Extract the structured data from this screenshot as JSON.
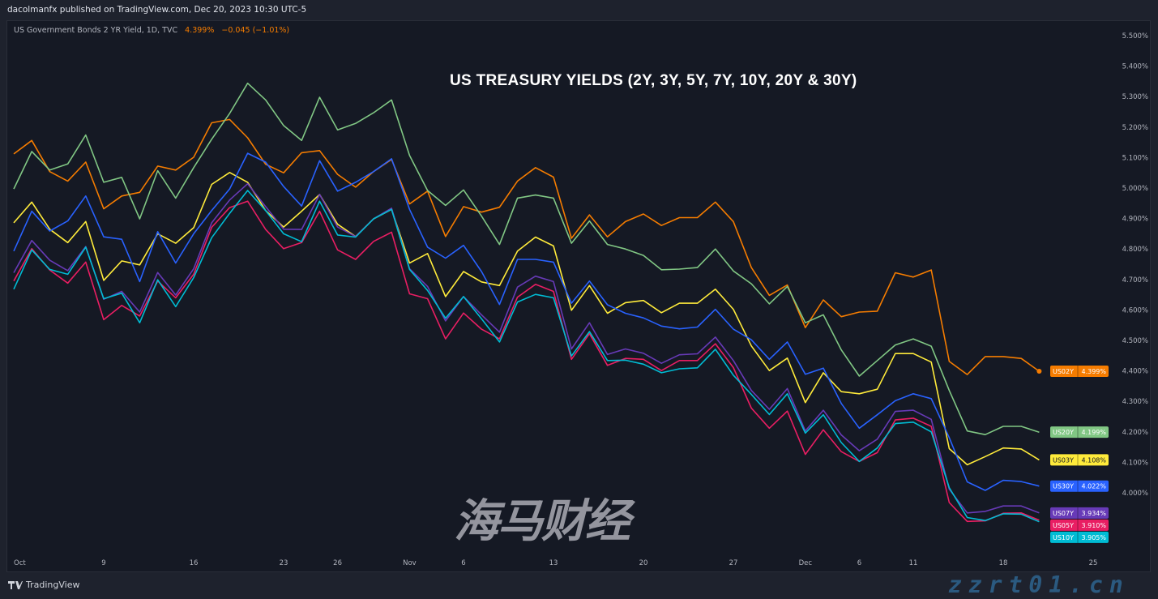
{
  "header": {
    "published": "dacolmanfx published on TradingView.com, Dec 20, 2023 10:30 UTC-5"
  },
  "legend": {
    "symbol": "US Government Bonds 2 YR Yield, 1D, TVC",
    "price": "4.399%",
    "change": "−0.045 (−1.01%)"
  },
  "footer": {
    "brand": "TradingView"
  },
  "watermark": {
    "cn": "海马财经",
    "site": "zzrt01.cn"
  },
  "chart_data": {
    "type": "line",
    "title": "US TREASURY YIELDS (2Y, 3Y, 5Y, 7Y, 10Y, 20Y & 30Y)",
    "ylim": [
      3.85,
      5.55
    ],
    "yticks": [
      "5.500%",
      "5.400%",
      "5.300%",
      "5.200%",
      "5.100%",
      "5.000%",
      "4.900%",
      "4.800%",
      "4.700%",
      "4.600%",
      "4.500%",
      "4.400%",
      "4.300%",
      "4.200%",
      "4.100%",
      "4.000%"
    ],
    "ytick_values": [
      5.5,
      5.4,
      5.3,
      5.2,
      5.1,
      5.0,
      4.9,
      4.8,
      4.7,
      4.6,
      4.5,
      4.4,
      4.3,
      4.2,
      4.1,
      4.0
    ],
    "xticks": [
      {
        "date": "2023-10-02",
        "label": "Oct"
      },
      {
        "date": "2023-10-09",
        "label": "9"
      },
      {
        "date": "2023-10-16",
        "label": "16"
      },
      {
        "date": "2023-10-23",
        "label": "23"
      },
      {
        "date": "2023-10-26",
        "label": "26"
      },
      {
        "date": "2023-11-01",
        "label": "Nov"
      },
      {
        "date": "2023-11-06",
        "label": "6"
      },
      {
        "date": "2023-11-13",
        "label": "13"
      },
      {
        "date": "2023-11-20",
        "label": "20"
      },
      {
        "date": "2023-11-27",
        "label": "27"
      },
      {
        "date": "2023-12-01",
        "label": "Dec"
      },
      {
        "date": "2023-12-06",
        "label": "6"
      },
      {
        "date": "2023-12-11",
        "label": "11"
      },
      {
        "date": "2023-12-18",
        "label": "18"
      },
      {
        "date": "2023-12-25",
        "label": "25"
      }
    ],
    "x": [
      "2023-10-02",
      "2023-10-03",
      "2023-10-04",
      "2023-10-05",
      "2023-10-06",
      "2023-10-09",
      "2023-10-10",
      "2023-10-11",
      "2023-10-12",
      "2023-10-13",
      "2023-10-16",
      "2023-10-17",
      "2023-10-18",
      "2023-10-19",
      "2023-10-20",
      "2023-10-23",
      "2023-10-24",
      "2023-10-25",
      "2023-10-26",
      "2023-10-27",
      "2023-10-30",
      "2023-10-31",
      "2023-11-01",
      "2023-11-02",
      "2023-11-03",
      "2023-11-06",
      "2023-11-07",
      "2023-11-08",
      "2023-11-09",
      "2023-11-10",
      "2023-11-13",
      "2023-11-14",
      "2023-11-15",
      "2023-11-16",
      "2023-11-17",
      "2023-11-20",
      "2023-11-21",
      "2023-11-22",
      "2023-11-23",
      "2023-11-24",
      "2023-11-27",
      "2023-11-28",
      "2023-11-29",
      "2023-11-30",
      "2023-12-01",
      "2023-12-04",
      "2023-12-05",
      "2023-12-06",
      "2023-12-07",
      "2023-12-08",
      "2023-12-11",
      "2023-12-12",
      "2023-12-13",
      "2023-12-14",
      "2023-12-15",
      "2023-12-18",
      "2023-12-19",
      "2023-12-20"
    ],
    "series": [
      {
        "name": "US02Y",
        "label": "4.399%",
        "color": "#f57c00",
        "values": [
          5.112,
          5.156,
          5.054,
          5.023,
          5.085,
          4.932,
          4.974,
          4.986,
          5.072,
          5.059,
          5.101,
          5.214,
          5.225,
          5.165,
          5.078,
          5.05,
          5.116,
          5.123,
          5.045,
          5.003,
          5.054,
          5.094,
          4.948,
          4.99,
          4.841,
          4.939,
          4.921,
          4.937,
          5.023,
          5.067,
          5.036,
          4.835,
          4.912,
          4.84,
          4.89,
          4.915,
          4.877,
          4.903,
          4.903,
          4.954,
          4.89,
          4.739,
          4.648,
          4.682,
          4.542,
          4.633,
          4.578,
          4.593,
          4.596,
          4.722,
          4.708,
          4.731,
          4.431,
          4.388,
          4.447,
          4.447,
          4.441,
          4.399
        ]
      },
      {
        "name": "US20Y",
        "label": "4.199%",
        "color": "#81c784",
        "values": [
          4.997,
          5.12,
          5.059,
          5.079,
          5.174,
          5.019,
          5.035,
          4.899,
          5.057,
          4.967,
          5.067,
          5.16,
          5.245,
          5.344,
          5.289,
          5.205,
          5.156,
          5.298,
          5.191,
          5.212,
          5.247,
          5.289,
          5.107,
          4.992,
          4.943,
          4.994,
          4.908,
          4.815,
          4.967,
          4.977,
          4.967,
          4.819,
          4.892,
          4.815,
          4.8,
          4.779,
          4.732,
          4.734,
          4.739,
          4.8,
          4.728,
          4.686,
          4.62,
          4.677,
          4.558,
          4.584,
          4.469,
          4.383,
          4.434,
          4.485,
          4.505,
          4.481,
          4.336,
          4.203,
          4.191,
          4.218,
          4.218,
          4.199
        ]
      },
      {
        "name": "US03Y",
        "label": "4.108%",
        "color": "#ffeb3b",
        "values": [
          4.886,
          4.954,
          4.865,
          4.821,
          4.89,
          4.697,
          4.761,
          4.748,
          4.85,
          4.819,
          4.87,
          5.012,
          5.051,
          5.019,
          4.926,
          4.872,
          4.924,
          4.979,
          4.881,
          4.841,
          4.899,
          4.93,
          4.754,
          4.785,
          4.644,
          4.726,
          4.692,
          4.68,
          4.793,
          4.839,
          4.81,
          4.599,
          4.68,
          4.589,
          4.624,
          4.631,
          4.591,
          4.622,
          4.622,
          4.668,
          4.602,
          4.482,
          4.401,
          4.442,
          4.296,
          4.394,
          4.332,
          4.325,
          4.34,
          4.457,
          4.457,
          4.429,
          4.145,
          4.092,
          4.119,
          4.147,
          4.144,
          4.108
        ]
      },
      {
        "name": "US30Y",
        "label": "4.022%",
        "color": "#2962ff",
        "values": [
          4.793,
          4.924,
          4.859,
          4.892,
          4.974,
          4.84,
          4.832,
          4.693,
          4.857,
          4.754,
          4.85,
          4.926,
          4.997,
          5.114,
          5.085,
          5.005,
          4.941,
          5.09,
          4.99,
          5.019,
          5.054,
          5.096,
          4.93,
          4.806,
          4.77,
          4.812,
          4.726,
          4.618,
          4.766,
          4.766,
          4.757,
          4.622,
          4.695,
          4.617,
          4.589,
          4.574,
          4.547,
          4.538,
          4.544,
          4.602,
          4.537,
          4.502,
          4.438,
          4.495,
          4.389,
          4.409,
          4.293,
          4.212,
          4.256,
          4.302,
          4.325,
          4.309,
          4.181,
          4.036,
          4.008,
          4.041,
          4.037,
          4.022
        ]
      },
      {
        "name": "US07Y",
        "label": "3.934%",
        "color": "#673ab7",
        "values": [
          4.722,
          4.828,
          4.763,
          4.729,
          4.808,
          4.635,
          4.661,
          4.593,
          4.723,
          4.649,
          4.735,
          4.886,
          4.961,
          5.014,
          4.939,
          4.865,
          4.864,
          4.979,
          4.872,
          4.841,
          4.899,
          4.934,
          4.735,
          4.677,
          4.564,
          4.644,
          4.584,
          4.527,
          4.675,
          4.711,
          4.693,
          4.472,
          4.558,
          4.454,
          4.472,
          4.458,
          4.425,
          4.453,
          4.456,
          4.511,
          4.434,
          4.336,
          4.274,
          4.342,
          4.203,
          4.271,
          4.19,
          4.138,
          4.176,
          4.267,
          4.271,
          4.241,
          4.012,
          3.934,
          3.939,
          3.957,
          3.957,
          3.934
        ]
      },
      {
        "name": "US05Y",
        "label": "3.910%",
        "color": "#e91e63",
        "values": [
          4.695,
          4.801,
          4.731,
          4.688,
          4.757,
          4.568,
          4.615,
          4.58,
          4.695,
          4.64,
          4.717,
          4.871,
          4.936,
          4.957,
          4.864,
          4.801,
          4.821,
          4.924,
          4.797,
          4.766,
          4.825,
          4.855,
          4.653,
          4.637,
          4.505,
          4.59,
          4.537,
          4.505,
          4.642,
          4.684,
          4.661,
          4.438,
          4.522,
          4.418,
          4.441,
          4.438,
          4.401,
          4.434,
          4.434,
          4.489,
          4.411,
          4.278,
          4.212,
          4.268,
          4.126,
          4.207,
          4.135,
          4.103,
          4.132,
          4.239,
          4.245,
          4.218,
          3.968,
          3.906,
          3.908,
          3.933,
          3.934,
          3.91
        ]
      },
      {
        "name": "US10Y",
        "label": "3.905%",
        "color": "#00bcd4",
        "values": [
          4.668,
          4.797,
          4.733,
          4.717,
          4.806,
          4.637,
          4.655,
          4.558,
          4.699,
          4.611,
          4.706,
          4.837,
          4.917,
          4.992,
          4.926,
          4.85,
          4.824,
          4.957,
          4.846,
          4.839,
          4.899,
          4.93,
          4.733,
          4.664,
          4.573,
          4.644,
          4.571,
          4.495,
          4.626,
          4.651,
          4.64,
          4.449,
          4.529,
          4.434,
          4.435,
          4.422,
          4.394,
          4.407,
          4.41,
          4.471,
          4.386,
          4.323,
          4.257,
          4.325,
          4.196,
          4.256,
          4.165,
          4.103,
          4.147,
          4.227,
          4.232,
          4.2,
          4.017,
          3.919,
          3.909,
          3.931,
          3.93,
          3.905
        ]
      }
    ]
  }
}
